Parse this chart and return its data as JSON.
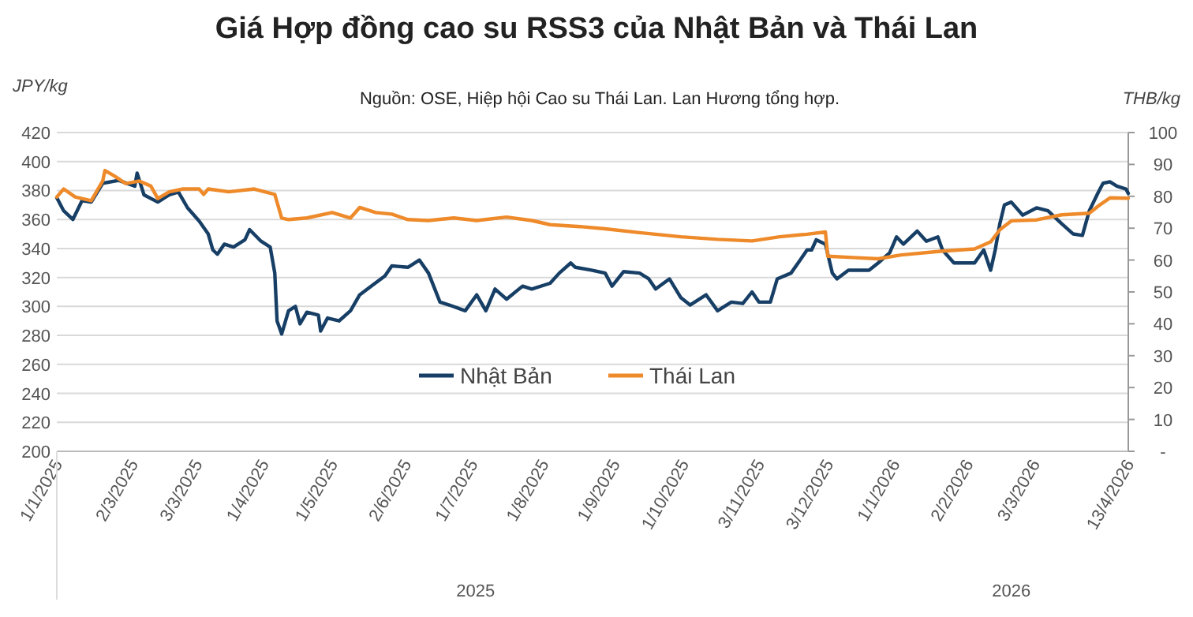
{
  "chart_data": {
    "type": "line",
    "title": "Giá Hợp đồng cao su RSS3 của Nhật Bản và Thái Lan",
    "subtitle": "Nguồn: OSE, Hiệp hội Cao su Thái Lan. Lan Hương tổng hợp.",
    "ylabel": "JPY/kg",
    "y2label": "THB/kg",
    "annotations": [
      "2025",
      "2026"
    ],
    "xlim": [
      "2025-01-01",
      "2026-04-13"
    ],
    "xticks": [
      {
        "value": "2025-01-01",
        "label": "1/1/2025"
      },
      {
        "value": "2025-02-03",
        "label": "2/3/2025"
      },
      {
        "value": "2025-03-03",
        "label": "3/3/2025"
      },
      {
        "value": "2025-04-01",
        "label": "1/4/2025"
      },
      {
        "value": "2025-05-01",
        "label": "1/5/2025"
      },
      {
        "value": "2025-06-02",
        "label": "2/6/2025"
      },
      {
        "value": "2025-07-01",
        "label": "1/7/2025"
      },
      {
        "value": "2025-08-01",
        "label": "1/8/2025"
      },
      {
        "value": "2025-09-01",
        "label": "1/9/2025"
      },
      {
        "value": "2025-10-01",
        "label": "1/10/2025"
      },
      {
        "value": "2025-11-03",
        "label": "3/11/2025"
      },
      {
        "value": "2025-12-03",
        "label": "3/12/2025"
      },
      {
        "value": "2026-01-01",
        "label": "1/1/2026"
      },
      {
        "value": "2026-02-02",
        "label": "2/2/2026"
      },
      {
        "value": "2026-03-03",
        "label": "3/3/2026"
      },
      {
        "value": "2026-04-13",
        "label": "13/4/2026"
      }
    ],
    "ylim": [
      200,
      420
    ],
    "yticks": [
      200,
      220,
      240,
      260,
      280,
      300,
      320,
      340,
      360,
      380,
      400,
      420
    ],
    "y2lim": [
      0,
      100
    ],
    "y2ticks": [
      {
        "value": 0,
        "label": "-"
      },
      10,
      20,
      30,
      40,
      50,
      60,
      70,
      80,
      90,
      100
    ],
    "grid": "y",
    "legend": "bottom",
    "marker": "none",
    "line_style": "solid",
    "series": [
      {
        "name": "Nhật Bản",
        "color": "#173f66",
        "x": [
          "2025-01-01",
          "2025-01-04",
          "2025-01-08",
          "2025-01-12",
          "2025-01-16",
          "2025-01-21",
          "2025-01-28",
          "2025-02-04",
          "2025-02-05",
          "2025-02-08",
          "2025-02-14",
          "2025-02-19",
          "2025-02-23",
          "2025-02-27",
          "2025-03-04",
          "2025-03-08",
          "2025-03-10",
          "2025-03-12",
          "2025-03-15",
          "2025-03-19",
          "2025-03-24",
          "2025-03-26",
          "2025-03-31",
          "2025-04-04",
          "2025-04-06",
          "2025-04-07",
          "2025-04-09",
          "2025-04-12",
          "2025-04-15",
          "2025-04-17",
          "2025-04-20",
          "2025-04-25",
          "2025-04-26",
          "2025-04-29",
          "2025-05-04",
          "2025-05-09",
          "2025-05-13",
          "2025-05-18",
          "2025-05-24",
          "2025-05-27",
          "2025-06-03",
          "2025-06-08",
          "2025-06-12",
          "2025-06-17",
          "2025-06-21",
          "2025-06-28",
          "2025-07-03",
          "2025-07-07",
          "2025-07-11",
          "2025-07-16",
          "2025-07-23",
          "2025-07-27",
          "2025-08-04",
          "2025-08-08",
          "2025-08-13",
          "2025-08-15",
          "2025-08-22",
          "2025-08-28",
          "2025-08-31",
          "2025-09-05",
          "2025-09-12",
          "2025-09-16",
          "2025-09-19",
          "2025-09-25",
          "2025-09-30",
          "2025-10-04",
          "2025-10-11",
          "2025-10-16",
          "2025-10-18",
          "2025-10-22",
          "2025-10-27",
          "2025-10-31",
          "2025-11-03",
          "2025-11-08",
          "2025-11-11",
          "2025-11-17",
          "2025-11-21",
          "2025-11-24",
          "2025-11-26",
          "2025-11-28",
          "2025-12-02",
          "2025-12-05",
          "2025-12-07",
          "2025-12-12",
          "2025-12-21",
          "2025-12-25",
          "2025-12-30",
          "2026-01-02",
          "2026-01-05",
          "2026-01-11",
          "2026-01-15",
          "2026-01-20",
          "2026-01-22",
          "2026-01-27",
          "2026-02-01",
          "2026-02-05",
          "2026-02-09",
          "2026-02-12",
          "2026-02-14",
          "2026-02-16",
          "2026-02-18",
          "2026-02-21",
          "2026-02-26",
          "2026-03-04",
          "2026-03-09",
          "2026-03-15",
          "2026-03-20",
          "2026-03-24",
          "2026-03-27",
          "2026-03-31",
          "2026-04-02",
          "2026-04-05",
          "2026-04-08",
          "2026-04-12",
          "2026-04-13"
        ],
        "values": [
          375,
          366,
          360,
          373,
          372,
          385,
          387,
          383,
          392,
          377,
          372,
          377,
          379,
          368,
          359,
          350,
          339,
          336,
          343,
          341,
          346,
          353,
          345,
          341,
          323,
          290,
          281,
          297,
          300,
          288,
          296,
          294,
          283,
          292,
          290,
          297,
          308,
          314,
          321,
          328,
          327,
          332,
          323,
          303,
          301,
          297,
          308,
          297,
          312,
          305,
          314,
          312,
          316,
          323,
          330,
          327,
          325,
          323,
          314,
          324,
          323,
          319,
          312,
          319,
          306,
          301,
          308,
          297,
          299,
          303,
          302,
          310,
          303,
          303,
          319,
          323,
          332,
          339,
          339,
          346,
          343,
          323,
          319,
          325,
          325,
          330,
          337,
          348,
          343,
          352,
          345,
          348,
          339,
          330,
          330,
          330,
          339,
          325,
          339,
          357,
          370,
          372,
          363,
          368,
          366,
          357,
          350,
          349,
          366,
          379,
          385,
          386,
          383,
          381,
          378
        ]
      },
      {
        "name": "Thái Lan",
        "color": "#ee8a2a",
        "axis": "y2",
        "x": [
          "2025-01-01",
          "2025-01-04",
          "2025-01-09",
          "2025-01-16",
          "2025-01-21",
          "2025-01-22",
          "2025-01-26",
          "2025-01-31",
          "2025-02-06",
          "2025-02-11",
          "2025-02-14",
          "2025-02-19",
          "2025-02-25",
          "2025-03-04",
          "2025-03-06",
          "2025-03-08",
          "2025-03-17",
          "2025-03-28",
          "2025-04-06",
          "2025-04-09",
          "2025-04-12",
          "2025-04-20",
          "2025-05-01",
          "2025-05-09",
          "2025-05-13",
          "2025-05-20",
          "2025-05-27",
          "2025-06-03",
          "2025-06-12",
          "2025-06-23",
          "2025-07-03",
          "2025-07-16",
          "2025-07-27",
          "2025-08-04",
          "2025-08-17",
          "2025-08-28",
          "2025-09-12",
          "2025-09-30",
          "2025-10-16",
          "2025-10-31",
          "2025-11-12",
          "2025-11-24",
          "2025-12-02",
          "2025-12-03",
          "2025-12-14",
          "2025-12-25",
          "2026-01-04",
          "2026-01-22",
          "2026-02-05",
          "2026-02-12",
          "2026-02-16",
          "2026-02-21",
          "2026-03-04",
          "2026-03-15",
          "2026-03-27",
          "2026-03-31",
          "2026-04-05",
          "2026-04-13"
        ],
        "values": [
          79.8,
          82.3,
          79.8,
          78.6,
          84.8,
          88.1,
          86.4,
          84,
          84.8,
          83.2,
          79.3,
          81.4,
          82.3,
          82.3,
          80.6,
          82.3,
          81.4,
          82.3,
          80.6,
          73.2,
          72.7,
          73.2,
          74.9,
          73.2,
          76.5,
          74.9,
          74.4,
          72.7,
          72.4,
          73.2,
          72.4,
          73.5,
          72.4,
          71.1,
          70.5,
          69.8,
          68.6,
          67.3,
          66.5,
          66,
          67.3,
          68.1,
          68.8,
          61.2,
          60.8,
          60.4,
          61.6,
          62.8,
          63.5,
          65.7,
          69.5,
          72.3,
          72.6,
          74.2,
          74.7,
          77,
          79.5,
          79.4
        ]
      }
    ]
  }
}
